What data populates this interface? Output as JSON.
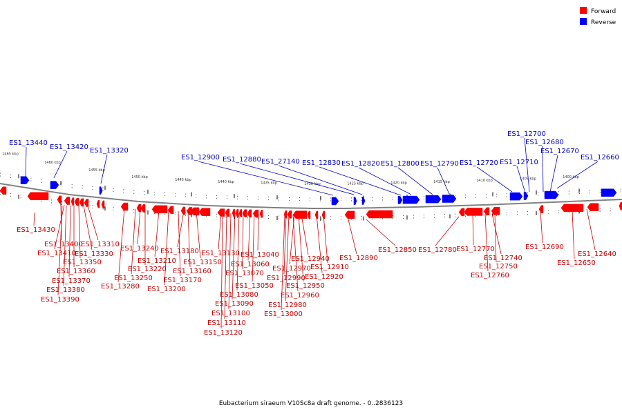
{
  "legend": {
    "forward_label": "Forward",
    "reverse_label": "Reverse"
  },
  "colors": {
    "forward": "#ff0000",
    "reverse": "#0000ff",
    "forward_label": "#cc0000",
    "reverse_label": "#0000cc",
    "backbone": "#808080"
  },
  "caption": "Eubacterium siraeum V10Sc8a draft genome. - 0..2836123",
  "kbp_ticks": [
    "1465 kbp",
    "1460 kbp",
    "1455 kbp",
    "1450 kbp",
    "1445 kbp",
    "1440 kbp",
    "1435 kbp",
    "1430 kbp",
    "1425 kbp",
    "1420 kbp",
    "1415 kbp",
    "1410 kbp",
    "1405 kbp",
    "1400 kbp"
  ],
  "reverse_labels": [
    "ES1_13440",
    "ES1_13420",
    "ES1_13320",
    "ES1_12900",
    "ES1_12880",
    "ES1_27140",
    "ES1_12830",
    "ES1_12820",
    "ES1_12800",
    "ES1_12790",
    "ES1_12720",
    "ES1_12710",
    "ES1_12700",
    "ES1_12680",
    "ES1_12670",
    "ES1_12660"
  ],
  "forward_labels": [
    "ES1_13430",
    "ES1_13400",
    "ES1_13410",
    "ES1_13310",
    "ES1_13330",
    "ES1_13350",
    "ES1_13360",
    "ES1_13370",
    "ES1_13380",
    "ES1_13390",
    "ES1_13240",
    "ES1_13210",
    "ES1_13220",
    "ES1_13250",
    "ES1_13280",
    "ES1_13180",
    "ES1_13150",
    "ES1_13160",
    "ES1_13170",
    "ES1_13200",
    "ES1_13130",
    "ES1_13040",
    "ES1_13060",
    "ES1_13070",
    "ES1_13050",
    "ES1_13080",
    "ES1_13090",
    "ES1_13100",
    "ES1_13110",
    "ES1_13120",
    "ES1_12940",
    "ES1_12970",
    "ES1_12910",
    "ES1_12990",
    "ES1_12920",
    "ES1_12950",
    "ES1_12960",
    "ES1_12980",
    "ES1_13000",
    "ES1_12890",
    "ES1_12850",
    "ES1_12780",
    "ES1_12770",
    "ES1_12740",
    "ES1_12750",
    "ES1_12760",
    "ES1_12690",
    "ES1_12640",
    "ES1_12650"
  ]
}
